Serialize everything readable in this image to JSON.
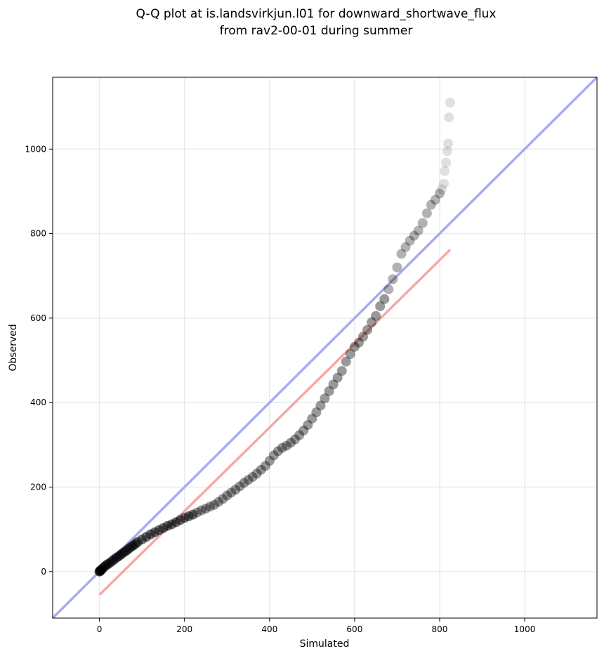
{
  "chart_data": {
    "type": "scatter",
    "title": [
      "Q-Q plot at is.landsvirkjun.l01 for downward_shortwave_flux",
      "from rav2-00-01 during summer"
    ],
    "xlabel": "Simulated",
    "ylabel": "Observed",
    "xlim": [
      -110,
      1170
    ],
    "ylim": [
      -110,
      1170
    ],
    "xticks": [
      0,
      200,
      400,
      600,
      800,
      1000
    ],
    "yticks": [
      0,
      200,
      400,
      600,
      800,
      1000
    ],
    "xtick_labels": [
      "0",
      "200",
      "400",
      "600",
      "800",
      "1000"
    ],
    "ytick_labels": [
      "0",
      "200",
      "400",
      "600",
      "800",
      "1000"
    ],
    "grid": true,
    "colors": {
      "points": "#000000",
      "identity_line": "#aaaaf2",
      "fit_line": "#f5a8a8"
    },
    "identity_line": {
      "x": [
        -110,
        1170
      ],
      "y": [
        -110,
        1170
      ]
    },
    "fit_line": {
      "x": [
        0,
        825
      ],
      "y": [
        -55,
        762
      ]
    },
    "points": [
      [
        0,
        0
      ],
      [
        1,
        1
      ],
      [
        2,
        2
      ],
      [
        3,
        3
      ],
      [
        5,
        5
      ],
      [
        8,
        8
      ],
      [
        12,
        12
      ],
      [
        16,
        15
      ],
      [
        20,
        18
      ],
      [
        25,
        21
      ],
      [
        30,
        25
      ],
      [
        35,
        29
      ],
      [
        40,
        33
      ],
      [
        45,
        36
      ],
      [
        50,
        40
      ],
      [
        55,
        44
      ],
      [
        60,
        47
      ],
      [
        65,
        51
      ],
      [
        70,
        55
      ],
      [
        75,
        59
      ],
      [
        80,
        62
      ],
      [
        85,
        66
      ],
      [
        90,
        70
      ],
      [
        100,
        76
      ],
      [
        110,
        82
      ],
      [
        120,
        88
      ],
      [
        130,
        93
      ],
      [
        140,
        98
      ],
      [
        150,
        103
      ],
      [
        160,
        108
      ],
      [
        170,
        112
      ],
      [
        180,
        117
      ],
      [
        190,
        122
      ],
      [
        200,
        127
      ],
      [
        210,
        131
      ],
      [
        220,
        135
      ],
      [
        230,
        140
      ],
      [
        240,
        145
      ],
      [
        250,
        149
      ],
      [
        260,
        154
      ],
      [
        270,
        158
      ],
      [
        280,
        165
      ],
      [
        290,
        172
      ],
      [
        300,
        180
      ],
      [
        310,
        187
      ],
      [
        320,
        194
      ],
      [
        330,
        202
      ],
      [
        340,
        210
      ],
      [
        350,
        217
      ],
      [
        360,
        224
      ],
      [
        370,
        232
      ],
      [
        380,
        241
      ],
      [
        390,
        250
      ],
      [
        400,
        262
      ],
      [
        410,
        275
      ],
      [
        420,
        285
      ],
      [
        430,
        293
      ],
      [
        440,
        298
      ],
      [
        450,
        305
      ],
      [
        460,
        313
      ],
      [
        470,
        323
      ],
      [
        480,
        334
      ],
      [
        490,
        347
      ],
      [
        500,
        362
      ],
      [
        510,
        377
      ],
      [
        520,
        393
      ],
      [
        530,
        410
      ],
      [
        540,
        427
      ],
      [
        550,
        443
      ],
      [
        560,
        459
      ],
      [
        570,
        475
      ],
      [
        580,
        497
      ],
      [
        590,
        515
      ],
      [
        600,
        532
      ],
      [
        610,
        542
      ],
      [
        620,
        556
      ],
      [
        630,
        572
      ],
      [
        640,
        590
      ],
      [
        650,
        605
      ],
      [
        660,
        628
      ],
      [
        670,
        645
      ],
      [
        680,
        668
      ],
      [
        690,
        692
      ],
      [
        700,
        720
      ],
      [
        710,
        752
      ],
      [
        720,
        768
      ],
      [
        730,
        783
      ],
      [
        740,
        795
      ],
      [
        750,
        807
      ],
      [
        760,
        825
      ],
      [
        770,
        848
      ],
      [
        780,
        868
      ],
      [
        790,
        880
      ],
      [
        800,
        895
      ],
      [
        805,
        905
      ],
      [
        810,
        918
      ],
      [
        812,
        948
      ],
      [
        815,
        968
      ],
      [
        818,
        995
      ],
      [
        820,
        1013
      ],
      [
        822,
        1075
      ],
      [
        825,
        1110
      ]
    ]
  }
}
